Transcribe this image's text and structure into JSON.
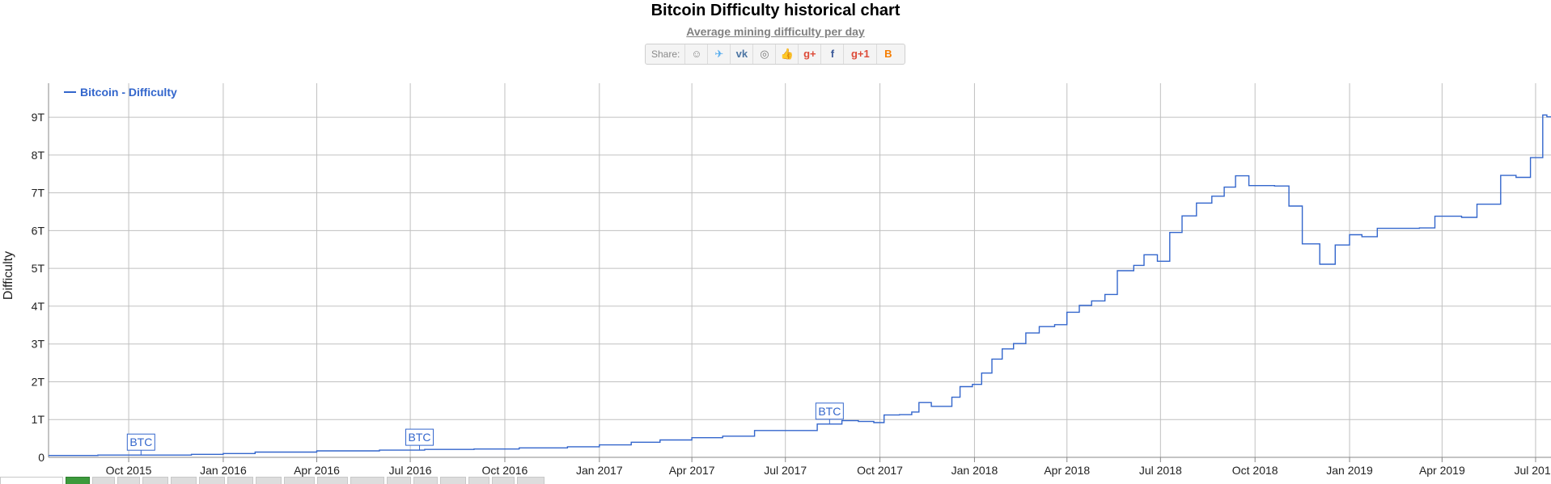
{
  "share": {
    "label": "Share:",
    "buttons": [
      {
        "name": "reddit-icon",
        "glyph": "☺",
        "color": "#8a8a8a"
      },
      {
        "name": "twitter-icon",
        "glyph": "✈",
        "color": "#55acee"
      },
      {
        "name": "vk-icon",
        "glyph": "vk",
        "color": "#4c75a3"
      },
      {
        "name": "weibo-icon",
        "glyph": "◎",
        "color": "#7a7a7a"
      },
      {
        "name": "like-icon",
        "glyph": "👍",
        "color": "#5b7bb5"
      },
      {
        "name": "google-plus-icon",
        "glyph": "g+",
        "color": "#dd4b39"
      },
      {
        "name": "facebook-icon",
        "glyph": "f",
        "color": "#3b5998"
      },
      {
        "name": "google-plus-one-icon",
        "glyph": "g+1",
        "color": "#dd4b39"
      },
      {
        "name": "blogger-icon",
        "glyph": "B",
        "color": "#f57d00"
      }
    ]
  },
  "chart_data": {
    "type": "line",
    "title": "Bitcoin Difficulty historical chart",
    "subtitle": "Average mining difficulty per day",
    "ylabel": "Difficulty",
    "xlabel": "",
    "legend": {
      "label": "Bitcoin - Difficulty",
      "placement": "top-left"
    },
    "color": "#3366cc",
    "grid": true,
    "x_ticks": [
      "Oct 2015",
      "Jan 2016",
      "Apr 2016",
      "Jul 2016",
      "Oct 2016",
      "Jan 2017",
      "Apr 2017",
      "Jul 2017",
      "Oct 2017",
      "Jan 2018",
      "Apr 2018",
      "Jul 2018",
      "Oct 2018",
      "Jan 2019",
      "Apr 2019",
      "Jul 2019"
    ],
    "y_ticks": [
      "0",
      "1T",
      "2T",
      "3T",
      "4T",
      "5T",
      "6T",
      "7T",
      "8T",
      "9T"
    ],
    "ylim": [
      0,
      9.9
    ],
    "unit": "T",
    "annotations": [
      {
        "label": "BTC",
        "date": "2015-10-13"
      },
      {
        "label": "BTC",
        "date": "2016-07-10"
      },
      {
        "label": "BTC",
        "date": "2017-08-13"
      }
    ],
    "series": [
      {
        "name": "Bitcoin - Difficulty",
        "points": [
          [
            "2015-07-15",
            0.05
          ],
          [
            "2015-09-01",
            0.06
          ],
          [
            "2015-10-15",
            0.06
          ],
          [
            "2015-12-01",
            0.08
          ],
          [
            "2016-01-01",
            0.1
          ],
          [
            "2016-02-01",
            0.14
          ],
          [
            "2016-04-01",
            0.17
          ],
          [
            "2016-06-01",
            0.19
          ],
          [
            "2016-07-15",
            0.21
          ],
          [
            "2016-09-01",
            0.22
          ],
          [
            "2016-10-15",
            0.25
          ],
          [
            "2016-12-01",
            0.28
          ],
          [
            "2017-01-01",
            0.33
          ],
          [
            "2017-02-01",
            0.4
          ],
          [
            "2017-03-01",
            0.46
          ],
          [
            "2017-04-01",
            0.52
          ],
          [
            "2017-05-01",
            0.56
          ],
          [
            "2017-06-01",
            0.71
          ],
          [
            "2017-07-01",
            0.71
          ],
          [
            "2017-08-01",
            0.88
          ],
          [
            "2017-08-25",
            0.97
          ],
          [
            "2017-09-10",
            0.95
          ],
          [
            "2017-09-25",
            0.92
          ],
          [
            "2017-10-05",
            1.12
          ],
          [
            "2017-10-20",
            1.13
          ],
          [
            "2017-11-01",
            1.2
          ],
          [
            "2017-11-08",
            1.45
          ],
          [
            "2017-11-20",
            1.35
          ],
          [
            "2017-12-02",
            1.35
          ],
          [
            "2017-12-10",
            1.59
          ],
          [
            "2017-12-18",
            1.87
          ],
          [
            "2017-12-30",
            1.93
          ],
          [
            "2018-01-08",
            2.23
          ],
          [
            "2018-01-18",
            2.6
          ],
          [
            "2018-01-28",
            2.87
          ],
          [
            "2018-02-08",
            3.01
          ],
          [
            "2018-02-20",
            3.29
          ],
          [
            "2018-03-05",
            3.46
          ],
          [
            "2018-03-20",
            3.51
          ],
          [
            "2018-04-01",
            3.84
          ],
          [
            "2018-04-13",
            4.02
          ],
          [
            "2018-04-25",
            4.14
          ],
          [
            "2018-05-08",
            4.31
          ],
          [
            "2018-05-20",
            4.94
          ],
          [
            "2018-06-05",
            5.08
          ],
          [
            "2018-06-15",
            5.36
          ],
          [
            "2018-06-28",
            5.19
          ],
          [
            "2018-07-10",
            5.95
          ],
          [
            "2018-07-22",
            6.39
          ],
          [
            "2018-08-05",
            6.73
          ],
          [
            "2018-08-20",
            6.91
          ],
          [
            "2018-09-01",
            7.15
          ],
          [
            "2018-09-12",
            7.45
          ],
          [
            "2018-09-25",
            7.19
          ],
          [
            "2018-10-20",
            7.18
          ],
          [
            "2018-11-03",
            6.65
          ],
          [
            "2018-11-16",
            5.65
          ],
          [
            "2018-12-03",
            5.11
          ],
          [
            "2018-12-18",
            5.62
          ],
          [
            "2019-01-01",
            5.89
          ],
          [
            "2019-01-13",
            5.84
          ],
          [
            "2019-01-28",
            6.06
          ],
          [
            "2019-03-10",
            6.07
          ],
          [
            "2019-03-25",
            6.38
          ],
          [
            "2019-04-20",
            6.35
          ],
          [
            "2019-05-05",
            6.7
          ],
          [
            "2019-05-28",
            7.46
          ],
          [
            "2019-06-12",
            7.41
          ],
          [
            "2019-06-26",
            7.93
          ],
          [
            "2019-07-08",
            9.06
          ],
          [
            "2019-07-12",
            9.01
          ]
        ]
      }
    ]
  }
}
